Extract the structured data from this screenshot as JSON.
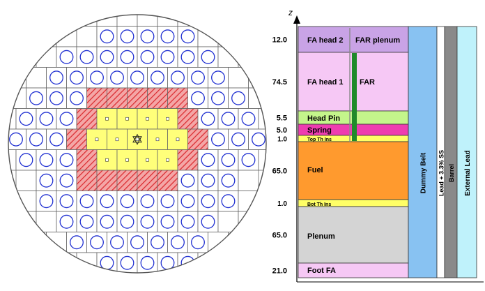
{
  "core_map": {
    "rows": [
      "WWWWWWWWWW",
      "WWWWBBBBBWWW",
      "WWBBBBBBBBWW",
      "WWBBBBBBBBBWW",
      "WBBBHHHHHBBBW",
      "WBBBHYYYYHBBBW",
      "BBBHYYYYYHBBB",
      "WBBBHYYYYHBBBW",
      "WBBHHHHHBBBW",
      "WBBBBBBBBBBW",
      "WWBBBBBBBBWW",
      "WWBBBBBBBWW",
      "WWWBBBBBWW",
      "WWWWWWW"
    ],
    "legend_note": "W=empty cell, B=blue circle (reflector/dummy), H=red hatched cell, Y=yellow fuel cell"
  },
  "axial": {
    "axis_label": "z",
    "columns_top": {
      "left_label_1": "FA head 2",
      "right_label_1": "FAR plenum",
      "left_label_2": "FA head 1",
      "right_label_2": "FAR"
    },
    "layers": [
      {
        "id": "fa_head_2",
        "value": "12.0",
        "label": "FA head 2",
        "color": "#c9a3e6"
      },
      {
        "id": "fa_head_1",
        "value": "74.5",
        "label": "FA head 1",
        "color": "#f6c8f5"
      },
      {
        "id": "head_pin",
        "value": "5.5",
        "label": "Head Pin",
        "color": "#c4f58b"
      },
      {
        "id": "spring",
        "value": "5.0",
        "label": "Spring",
        "color": "#ee3db0"
      },
      {
        "id": "top_th_ins",
        "value": "1.0",
        "label": "Top Th Ins",
        "color": "#ffff66"
      },
      {
        "id": "fuel",
        "value": "65.0",
        "label": "Fuel",
        "color": "#ff9a2e"
      },
      {
        "id": "bot_th_ins",
        "value": "1.0",
        "label": "Bot Th Ins",
        "color": "#ffff66"
      },
      {
        "id": "plenum",
        "value": "65.0",
        "label": "Plenum",
        "color": "#d4d4d4"
      },
      {
        "id": "foot_fa",
        "value": "21.0",
        "label": "Foot FA",
        "color": "#f6c8f5"
      }
    ],
    "verticals": [
      {
        "id": "dummy_belt",
        "label": "Dummy Belt",
        "color": "#88c2f2"
      },
      {
        "id": "lead_ss",
        "label": "Lead + 3.3% SS",
        "color": "#ffffff"
      },
      {
        "id": "barrel",
        "label": "Barrel",
        "color": "#8a8a8a"
      },
      {
        "id": "external_lead",
        "label": "External Lead",
        "color": "#bff2fb"
      }
    ],
    "far_rod_color": "#1f8a2a"
  }
}
